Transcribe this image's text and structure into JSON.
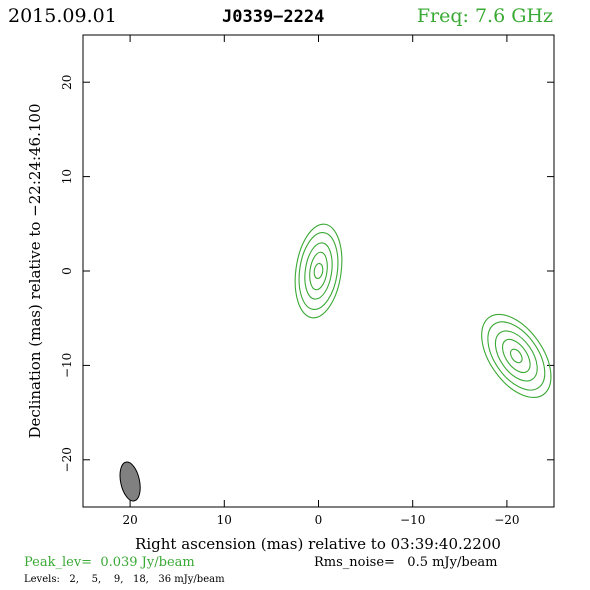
{
  "header": {
    "date": "2015.09.01",
    "source": "J0339−2224",
    "freq": "Freq: 7.6 GHz"
  },
  "chart_data": {
    "type": "contour",
    "xlabel": "Right ascension (mas) relative to 03:39:40.2200",
    "ylabel": "Declination (mas) relative to −22:24:46.100",
    "xlim": [
      25,
      -25
    ],
    "ylim": [
      -25,
      25
    ],
    "x_ticks": [
      20,
      10,
      0,
      -10,
      -20
    ],
    "x_tick_labels": [
      "20",
      "10",
      "0",
      "−10",
      "−20"
    ],
    "y_ticks": [
      20,
      10,
      0,
      -10,
      -20
    ],
    "y_tick_labels": [
      "20",
      "10",
      "0",
      "−10",
      "−20"
    ],
    "contour_color": "#3aa935",
    "components": [
      {
        "center": [
          0,
          0
        ],
        "levels": [
          {
            "rx": 2.4,
            "ry": 5.0,
            "angle": 8
          },
          {
            "rx": 2.0,
            "ry": 4.1,
            "angle": 8
          },
          {
            "rx": 1.4,
            "ry": 3.0,
            "angle": 8
          },
          {
            "rx": 0.9,
            "ry": 2.0,
            "angle": 8
          },
          {
            "rx": 0.45,
            "ry": 0.8,
            "angle": 8
          }
        ]
      },
      {
        "center": [
          -21,
          -9
        ],
        "levels": [
          {
            "rx": 2.8,
            "ry": 5.0,
            "angle": -35
          },
          {
            "rx": 2.3,
            "ry": 4.1,
            "angle": -35
          },
          {
            "rx": 1.7,
            "ry": 3.0,
            "angle": -35
          },
          {
            "rx": 1.1,
            "ry": 2.0,
            "angle": -35
          },
          {
            "rx": 0.5,
            "ry": 0.8,
            "angle": -35
          }
        ]
      }
    ],
    "beam": {
      "center": [
        20,
        -22.3
      ],
      "rx": 1.0,
      "ry": 2.1,
      "angle": -12,
      "color": "#808080"
    }
  },
  "footer": {
    "peak": "Peak_lev=  0.039 Jy/beam",
    "rms": "Rms_noise=   0.5 mJy/beam",
    "levels": "Levels:   2,    5,    9,   18,   36 mJy/beam"
  }
}
